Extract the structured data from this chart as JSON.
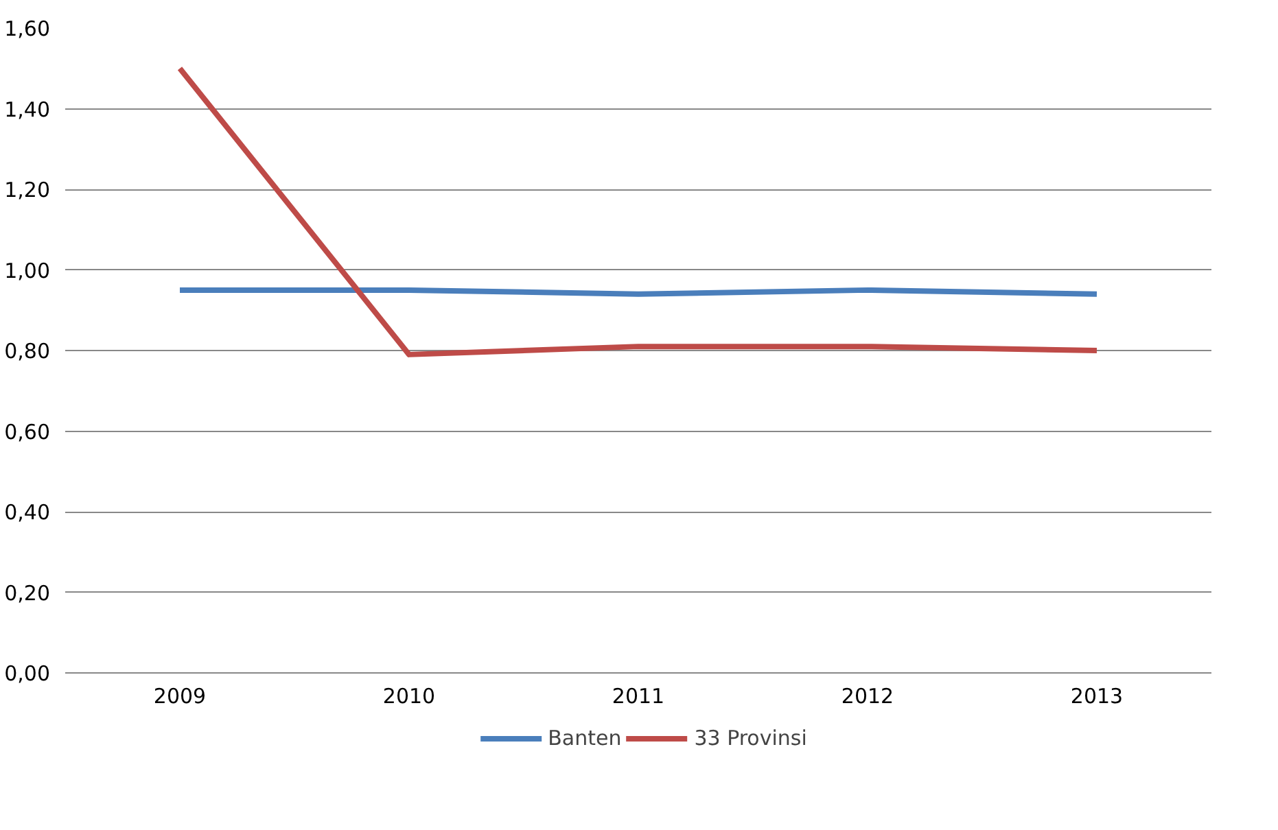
{
  "chart_data": {
    "type": "line",
    "categories": [
      "2009",
      "2010",
      "2011",
      "2012",
      "2013"
    ],
    "series": [
      {
        "name": "Banten",
        "color": "#4a7ebb",
        "values": [
          0.95,
          0.95,
          0.94,
          0.95,
          0.94
        ]
      },
      {
        "name": "33 Provinsi",
        "color": "#be4b48",
        "values": [
          1.5,
          0.79,
          0.81,
          0.81,
          0.8
        ]
      }
    ],
    "ylim": [
      0,
      1.6
    ],
    "yticks": [
      {
        "value": 0,
        "label": "0,00"
      },
      {
        "value": 0.2,
        "label": "0,20"
      },
      {
        "value": 0.4,
        "label": "0,40"
      },
      {
        "value": 0.6,
        "label": "0,60"
      },
      {
        "value": 0.8,
        "label": "0,80"
      },
      {
        "value": 1.0,
        "label": "1,00"
      },
      {
        "value": 1.2,
        "label": "1,20"
      },
      {
        "value": 1.4,
        "label": "1,40"
      },
      {
        "value": 1.6,
        "label": "1,60"
      }
    ],
    "grid": "y",
    "legend": "bottom",
    "marker": "none",
    "line_style": "solid"
  }
}
